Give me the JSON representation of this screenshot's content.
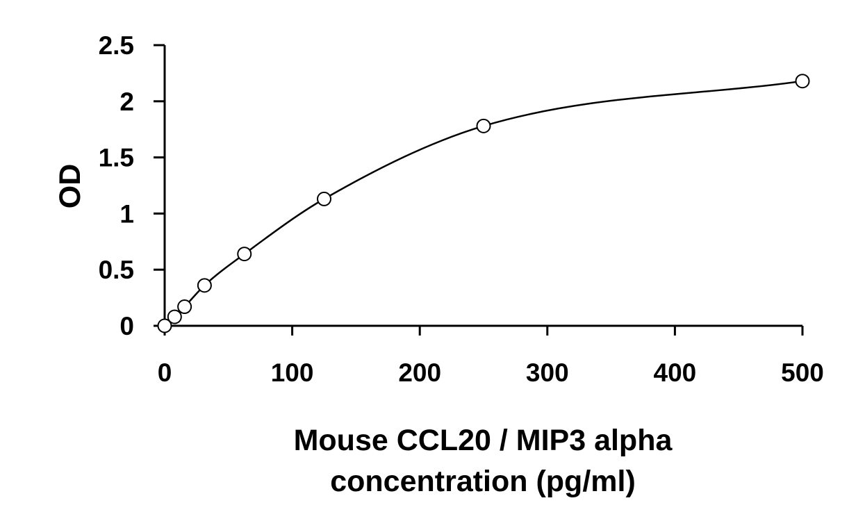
{
  "chart_data": {
    "type": "scatter",
    "title": "",
    "xlabel_lines": [
      "Mouse CCL20 / MIP3 alpha",
      "concentration (pg/ml)"
    ],
    "ylabel": "OD",
    "xlim": [
      0,
      500
    ],
    "ylim": [
      0,
      2.5
    ],
    "x_ticks": [
      0,
      100,
      200,
      300,
      400,
      500
    ],
    "y_ticks": [
      0,
      0.5,
      1,
      1.5,
      2,
      2.5
    ],
    "x_tick_labels": [
      "0",
      "100",
      "200",
      "300",
      "400",
      "500"
    ],
    "y_tick_labels": [
      "0",
      "0.5",
      "1",
      "1.5",
      "2",
      "2.5"
    ],
    "grid": false,
    "series": [
      {
        "x": [
          0,
          7.8,
          15.6,
          31.25,
          62.5,
          125,
          250,
          500
        ],
        "y": [
          0.0,
          0.08,
          0.17,
          0.36,
          0.64,
          1.13,
          1.78,
          2.18
        ],
        "marker": "open-circle",
        "fit_curve": true
      }
    ]
  }
}
